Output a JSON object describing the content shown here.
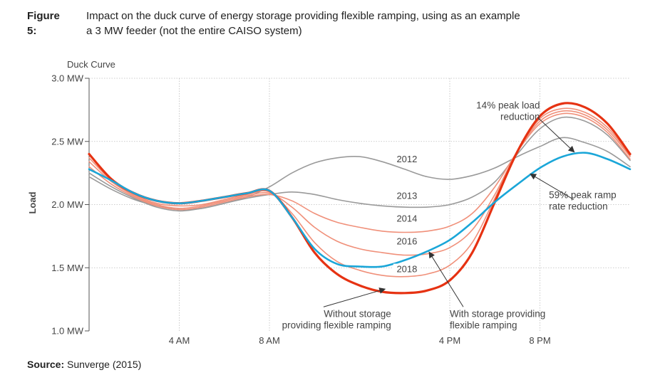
{
  "figure": {
    "label": "Figure 5:",
    "caption_line1": "Impact on the duck curve of energy storage providing flexible ramping, using as an example",
    "caption_line2": "a 3 MW feeder (not the entire CAISO system)"
  },
  "source": {
    "label": "Source:",
    "text": " Sunverge (2015)"
  },
  "chart_data": {
    "type": "line",
    "title": "Duck Curve",
    "ylabel": "Load",
    "xlabel": "",
    "ylim": [
      1.0,
      3.0
    ],
    "xlim": [
      0,
      24
    ],
    "yticks": [
      {
        "value": 1.0,
        "label": "1.0 MW"
      },
      {
        "value": 1.5,
        "label": "1.5 MW"
      },
      {
        "value": 2.0,
        "label": "2.0 MW"
      },
      {
        "value": 2.5,
        "label": "2.5 MW"
      },
      {
        "value": 3.0,
        "label": "3.0 MW"
      }
    ],
    "xticks": [
      {
        "value": 4,
        "label": "4 AM"
      },
      {
        "value": 8,
        "label": "8 AM"
      },
      {
        "value": 16,
        "label": "4 PM"
      },
      {
        "value": 20,
        "label": "8 PM"
      }
    ],
    "grid": true,
    "colors": {
      "grey": "#9a9a9a",
      "salmon": "#f0907a",
      "red": "#e63212",
      "blue": "#1aa6d8",
      "grid": "#bdbdbd",
      "axis": "#555555"
    },
    "series": [
      {
        "name": "2012",
        "color": "#9a9a9a",
        "width": 1.6,
        "x": [
          0,
          1,
          2,
          3,
          4,
          5,
          6,
          7,
          8,
          9,
          10,
          11,
          12,
          13,
          14,
          15,
          16,
          17,
          18,
          19,
          20,
          21,
          22,
          23,
          24
        ],
        "y": [
          2.22,
          2.12,
          2.04,
          1.99,
          1.96,
          1.97,
          2.01,
          2.06,
          2.14,
          2.25,
          2.33,
          2.37,
          2.38,
          2.34,
          2.28,
          2.22,
          2.2,
          2.23,
          2.29,
          2.38,
          2.46,
          2.53,
          2.49,
          2.42,
          2.3
        ]
      },
      {
        "name": "2013",
        "color": "#9a9a9a",
        "width": 1.6,
        "x": [
          0,
          1,
          2,
          3,
          4,
          5,
          6,
          7,
          8,
          9,
          10,
          11,
          12,
          13,
          14,
          15,
          16,
          17,
          18,
          19,
          20,
          21,
          22,
          23,
          24
        ],
        "y": [
          2.25,
          2.14,
          2.05,
          1.98,
          1.95,
          1.97,
          2.01,
          2.05,
          2.08,
          2.1,
          2.08,
          2.04,
          2.01,
          1.99,
          1.98,
          1.98,
          2.0,
          2.06,
          2.18,
          2.4,
          2.6,
          2.69,
          2.66,
          2.55,
          2.35
        ]
      },
      {
        "name": "2014",
        "color": "#f0907a",
        "width": 1.6,
        "x": [
          0,
          1,
          2,
          3,
          4,
          5,
          6,
          7,
          8,
          9,
          10,
          11,
          12,
          13,
          14,
          15,
          16,
          17,
          18,
          19,
          20,
          21,
          22,
          23,
          24
        ],
        "y": [
          2.3,
          2.16,
          2.06,
          1.99,
          1.96,
          1.98,
          2.02,
          2.06,
          2.08,
          2.03,
          1.93,
          1.86,
          1.82,
          1.79,
          1.78,
          1.79,
          1.83,
          1.93,
          2.14,
          2.42,
          2.64,
          2.72,
          2.69,
          2.57,
          2.36
        ]
      },
      {
        "name": "2016",
        "color": "#f0907a",
        "width": 1.6,
        "x": [
          0,
          1,
          2,
          3,
          4,
          5,
          6,
          7,
          8,
          9,
          10,
          11,
          12,
          13,
          14,
          15,
          16,
          17,
          18,
          19,
          20,
          21,
          22,
          23,
          24
        ],
        "y": [
          2.34,
          2.18,
          2.07,
          2.0,
          1.97,
          1.99,
          2.03,
          2.07,
          2.09,
          1.98,
          1.82,
          1.71,
          1.65,
          1.62,
          1.6,
          1.61,
          1.66,
          1.8,
          2.08,
          2.42,
          2.66,
          2.74,
          2.71,
          2.59,
          2.38
        ]
      },
      {
        "name": "2018",
        "color": "#f0907a",
        "width": 1.6,
        "x": [
          0,
          1,
          2,
          3,
          4,
          5,
          6,
          7,
          8,
          9,
          10,
          11,
          12,
          13,
          14,
          15,
          16,
          17,
          18,
          19,
          20,
          21,
          22,
          23,
          24
        ],
        "y": [
          2.37,
          2.19,
          2.08,
          2.01,
          1.99,
          2.0,
          2.04,
          2.08,
          2.1,
          1.93,
          1.7,
          1.55,
          1.48,
          1.44,
          1.43,
          1.45,
          1.52,
          1.7,
          2.05,
          2.42,
          2.68,
          2.76,
          2.73,
          2.61,
          2.39
        ]
      },
      {
        "name": "Without storage providing flexible ramping",
        "color": "#e63212",
        "width": 3.2,
        "x": [
          0,
          1,
          2,
          3,
          4,
          5,
          6,
          7,
          8,
          9,
          10,
          11,
          12,
          13,
          14,
          15,
          16,
          17,
          18,
          19,
          20,
          21,
          22,
          23,
          24
        ],
        "y": [
          2.4,
          2.2,
          2.09,
          2.03,
          2.01,
          2.03,
          2.06,
          2.09,
          2.11,
          1.9,
          1.62,
          1.45,
          1.36,
          1.31,
          1.3,
          1.32,
          1.4,
          1.62,
          2.02,
          2.42,
          2.7,
          2.8,
          2.77,
          2.64,
          2.4
        ]
      },
      {
        "name": "With storage providing flexible ramping",
        "color": "#1aa6d8",
        "width": 2.6,
        "x": [
          0,
          1,
          2,
          3,
          4,
          5,
          6,
          7,
          8,
          9,
          10,
          11,
          12,
          13,
          14,
          15,
          16,
          17,
          18,
          19,
          20,
          21,
          22,
          23,
          24
        ],
        "y": [
          2.28,
          2.19,
          2.09,
          2.03,
          2.01,
          2.03,
          2.06,
          2.09,
          2.11,
          1.9,
          1.65,
          1.53,
          1.51,
          1.51,
          1.56,
          1.63,
          1.72,
          1.86,
          2.02,
          2.16,
          2.29,
          2.38,
          2.41,
          2.36,
          2.28
        ]
      }
    ],
    "series_labels": [
      {
        "text": "2012",
        "x": 14.1,
        "y": 2.34
      },
      {
        "text": "2013",
        "x": 14.1,
        "y": 2.05
      },
      {
        "text": "2014",
        "x": 14.1,
        "y": 1.87
      },
      {
        "text": "2016",
        "x": 14.1,
        "y": 1.69
      },
      {
        "text": "2018",
        "x": 14.1,
        "y": 1.47
      }
    ],
    "annotations": [
      {
        "id": "peak-load",
        "lines": [
          "14% peak load",
          "reduction"
        ],
        "anchor": "end",
        "x": 20.0,
        "y": 2.76,
        "arrow_from": [
          19.9,
          2.69
        ],
        "arrow_to": [
          21.5,
          2.42
        ]
      },
      {
        "id": "peak-ramp",
        "lines": [
          "59% peak ramp",
          "rate reduction"
        ],
        "anchor": "start",
        "x": 20.4,
        "y": 2.05,
        "arrow_from": [
          21.5,
          2.04
        ],
        "arrow_to": [
          19.6,
          2.24
        ]
      },
      {
        "id": "without-storage",
        "lines": [
          "Without storage",
          "providing flexible ramping"
        ],
        "anchor": "end",
        "x": 13.4,
        "y": 1.11,
        "arrow_from": [
          10.4,
          1.19
        ],
        "arrow_to": [
          13.1,
          1.33
        ]
      },
      {
        "id": "with-storage",
        "lines": [
          "With storage providing",
          "flexible ramping"
        ],
        "anchor": "start",
        "x": 16.0,
        "y": 1.11,
        "arrow_from": [
          16.6,
          1.19
        ],
        "arrow_to": [
          15.1,
          1.62
        ]
      }
    ]
  }
}
